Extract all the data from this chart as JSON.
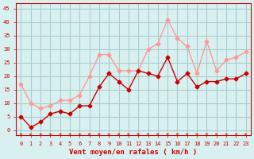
{
  "hours": [
    0,
    1,
    2,
    3,
    4,
    5,
    6,
    7,
    8,
    9,
    10,
    11,
    12,
    13,
    14,
    15,
    16,
    17,
    18,
    19,
    20,
    21,
    22,
    23
  ],
  "avg_wind": [
    5,
    1,
    3,
    6,
    7,
    6,
    9,
    9,
    16,
    21,
    18,
    15,
    22,
    21,
    20,
    27,
    18,
    21,
    16,
    18,
    18,
    19,
    19,
    21
  ],
  "gust_wind": [
    17,
    10,
    8,
    9,
    11,
    11,
    13,
    20,
    28,
    28,
    22,
    22,
    22,
    30,
    32,
    41,
    34,
    31,
    21,
    33,
    22,
    26,
    27,
    29
  ],
  "avg_color": "#cc0000",
  "gust_color": "#ff9999",
  "bg_color": "#d8f0f0",
  "grid_color": "#aacccc",
  "xlabel": "Vent moyen/en rafales ( km/h )",
  "xlabel_color": "#cc0000",
  "tick_color": "#cc0000",
  "ylim": [
    -2,
    47
  ],
  "yticks": [
    0,
    5,
    10,
    15,
    20,
    25,
    30,
    35,
    40,
    45
  ]
}
